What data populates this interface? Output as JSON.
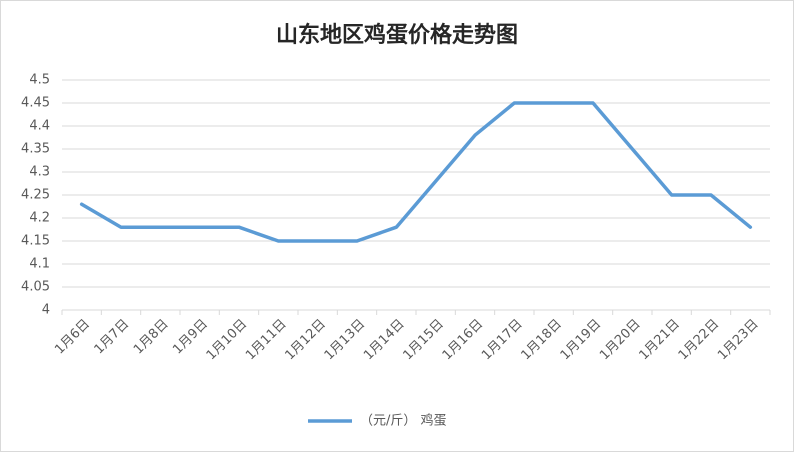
{
  "chart_data": {
    "type": "line",
    "title": "山东地区鸡蛋价格走势图",
    "categories": [
      "1月6日",
      "1月7日",
      "1月8日",
      "1月9日",
      "1月10日",
      "1月11日",
      "1月12日",
      "1月13日",
      "1月14日",
      "1月15日",
      "1月16日",
      "1月17日",
      "1月18日",
      "1月19日",
      "1月20日",
      "1月21日",
      "1月22日",
      "1月23日"
    ],
    "series": [
      {
        "name": "（元/斤） 鸡蛋",
        "color": "#5b9bd5",
        "values": [
          4.23,
          4.18,
          4.18,
          4.18,
          4.18,
          4.15,
          4.15,
          4.15,
          4.18,
          4.28,
          4.38,
          4.45,
          4.45,
          4.45,
          4.35,
          4.25,
          4.25,
          4.18
        ]
      }
    ],
    "ylim": [
      4,
      4.5
    ],
    "yticks": [
      4,
      4.05,
      4.1,
      4.15,
      4.2,
      4.25,
      4.3,
      4.35,
      4.4,
      4.45,
      4.5
    ],
    "grid": true,
    "legend": "bottom"
  }
}
